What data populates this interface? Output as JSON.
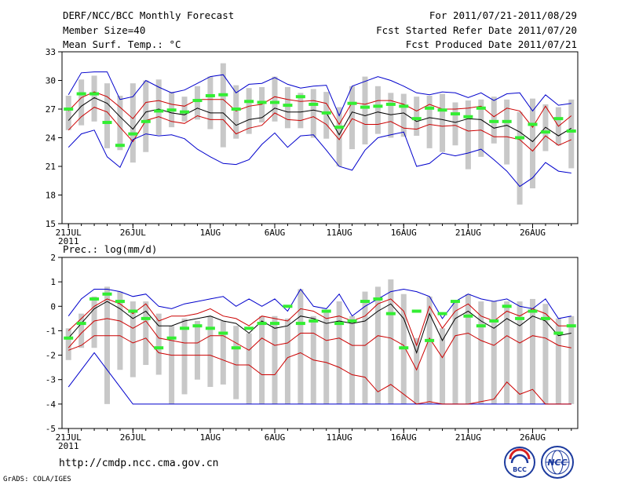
{
  "header": {
    "title": "DERF/NCC/BCC Monthly Forecast",
    "member_size": "Member Size=40",
    "variable": "Mean Surf. Temp.: °C",
    "period": "For 2011/07/21-2011/08/29",
    "fcst_start": "Fcst Started Refer Date 2011/07/20",
    "fcst_produced": "Fcst Produced Date 2011/07/21"
  },
  "footer": {
    "url": "http://cmdp.ncc.cma.gov.cn",
    "grads": "GrADS: COLA/IGES",
    "logo1_text": "BCC",
    "logo2_text": "NCC"
  },
  "colors": {
    "max_line": "#0000cc",
    "quartile_line": "#cc0000",
    "median_line": "#000000",
    "bar": "#c8c8c8",
    "observed": "#33ee33",
    "frame": "#000000"
  },
  "chart_data": [
    {
      "type": "line",
      "name": "temperature",
      "title": "Mean Surf. Temp.: °C",
      "ylim": [
        15,
        33
      ],
      "yticks": [
        15,
        18,
        21,
        24,
        27,
        30,
        33
      ],
      "xlim": [
        0.5,
        40.5
      ],
      "xticks": [
        {
          "day": 1,
          "label": "21JUL",
          "sub": "2011"
        },
        {
          "day": 6,
          "label": "26JUL",
          "sub": ""
        },
        {
          "day": 12,
          "label": "1AUG",
          "sub": ""
        },
        {
          "day": 17,
          "label": "6AUG",
          "sub": ""
        },
        {
          "day": 22,
          "label": "11AUG",
          "sub": ""
        },
        {
          "day": 27,
          "label": "16AUG",
          "sub": ""
        },
        {
          "day": 32,
          "label": "21AUG",
          "sub": ""
        },
        {
          "day": 37,
          "label": "26AUG",
          "sub": ""
        }
      ],
      "days": [
        1,
        2,
        3,
        4,
        5,
        6,
        7,
        8,
        9,
        10,
        11,
        12,
        13,
        14,
        15,
        16,
        17,
        18,
        19,
        20,
        21,
        22,
        23,
        24,
        25,
        26,
        27,
        28,
        29,
        30,
        31,
        32,
        33,
        34,
        35,
        36,
        37,
        38,
        39,
        40
      ],
      "series": [
        {
          "name": "max",
          "role": "max",
          "values": [
            28.5,
            30.8,
            30.9,
            30.9,
            28.0,
            28.3,
            30.0,
            29.3,
            28.7,
            29.0,
            29.7,
            30.4,
            30.6,
            28.7,
            29.6,
            29.7,
            30.3,
            29.6,
            29.2,
            29.4,
            29.5,
            26.3,
            29.4,
            29.9,
            30.4,
            30.0,
            29.4,
            28.7,
            28.5,
            28.8,
            28.7,
            28.2,
            28.7,
            27.9,
            28.6,
            28.7,
            26.8,
            28.5,
            27.4,
            27.6
          ]
        },
        {
          "name": "upper quartile",
          "role": "q3",
          "values": [
            26.8,
            28.2,
            28.8,
            28.3,
            27.2,
            26.0,
            27.7,
            27.9,
            27.5,
            27.3,
            28.0,
            28.0,
            28.0,
            26.8,
            27.3,
            27.5,
            28.3,
            28.0,
            27.8,
            27.9,
            27.6,
            25.4,
            27.7,
            27.5,
            27.9,
            27.9,
            27.5,
            26.8,
            27.5,
            27.0,
            27.0,
            27.1,
            27.3,
            26.2,
            27.1,
            26.8,
            25.1,
            27.3,
            25.2,
            26.3
          ]
        },
        {
          "name": "median",
          "role": "median",
          "values": [
            25.8,
            27.3,
            28.2,
            27.6,
            26.2,
            24.9,
            26.7,
            27.0,
            26.6,
            26.4,
            27.1,
            26.6,
            26.6,
            25.3,
            25.9,
            26.1,
            27.1,
            26.7,
            26.7,
            26.9,
            26.6,
            24.3,
            26.7,
            26.3,
            26.7,
            26.4,
            26.6,
            25.7,
            26.1,
            25.9,
            25.6,
            26.0,
            25.9,
            25.0,
            25.3,
            24.6,
            23.6,
            25.1,
            24.2,
            25.0
          ]
        },
        {
          "name": "lower quartile",
          "role": "q1",
          "values": [
            24.8,
            26.2,
            27.2,
            26.7,
            25.1,
            23.6,
            25.8,
            26.2,
            25.7,
            25.5,
            26.3,
            25.9,
            25.9,
            24.4,
            25.0,
            25.3,
            26.6,
            25.9,
            25.8,
            26.2,
            25.4,
            23.8,
            26.0,
            25.4,
            25.4,
            25.7,
            25.0,
            24.9,
            25.4,
            25.2,
            25.3,
            24.7,
            24.8,
            24.1,
            24.1,
            23.8,
            22.6,
            24.2,
            23.2,
            23.8
          ]
        },
        {
          "name": "min",
          "role": "min",
          "values": [
            23.0,
            24.4,
            24.8,
            22.0,
            20.9,
            23.8,
            24.4,
            24.2,
            24.3,
            23.9,
            22.8,
            22.0,
            21.3,
            21.2,
            21.7,
            23.3,
            24.5,
            23.0,
            24.2,
            24.3,
            22.7,
            21.0,
            20.6,
            22.7,
            24.0,
            24.3,
            24.6,
            21.0,
            21.3,
            22.4,
            22.1,
            22.4,
            22.8,
            21.7,
            20.5,
            18.9,
            19.8,
            21.4,
            20.5,
            20.3
          ]
        }
      ],
      "bars": [
        {
          "low": 24.8,
          "high": 28.4
        },
        {
          "low": 25.3,
          "high": 30.1
        },
        {
          "low": 25.7,
          "high": 30.5
        },
        {
          "low": 22.9,
          "high": 29.7
        },
        {
          "low": 22.7,
          "high": 28.4
        },
        {
          "low": 21.4,
          "high": 29.7
        },
        {
          "low": 22.5,
          "high": 30.0
        },
        {
          "low": 24.3,
          "high": 30.1
        },
        {
          "low": 25.1,
          "high": 28.8
        },
        {
          "low": 25.7,
          "high": 28.3
        },
        {
          "low": 25.9,
          "high": 29.4
        },
        {
          "low": 24.9,
          "high": 30.4
        },
        {
          "low": 23.0,
          "high": 31.8
        },
        {
          "low": 23.9,
          "high": 29.5
        },
        {
          "low": 24.4,
          "high": 29.2
        },
        {
          "low": 25.6,
          "high": 29.3
        },
        {
          "low": 25.7,
          "high": 30.4
        },
        {
          "low": 25.0,
          "high": 29.3
        },
        {
          "low": 25.0,
          "high": 28.7
        },
        {
          "low": 24.0,
          "high": 29.1
        },
        {
          "low": 23.9,
          "high": 28.8
        },
        {
          "low": 21.0,
          "high": 27.2
        },
        {
          "low": 22.8,
          "high": 29.4
        },
        {
          "low": 23.3,
          "high": 30.4
        },
        {
          "low": 24.4,
          "high": 29.4
        },
        {
          "low": 24.0,
          "high": 28.7
        },
        {
          "low": 24.1,
          "high": 28.6
        },
        {
          "low": 24.2,
          "high": 28.3
        },
        {
          "low": 22.9,
          "high": 28.4
        },
        {
          "low": 22.5,
          "high": 28.6
        },
        {
          "low": 23.2,
          "high": 27.7
        },
        {
          "low": 20.7,
          "high": 27.9
        },
        {
          "low": 22.0,
          "high": 28.0
        },
        {
          "low": 23.4,
          "high": 28.3
        },
        {
          "low": 21.2,
          "high": 28.0
        },
        {
          "low": 17.0,
          "high": 26.7
        },
        {
          "low": 18.7,
          "high": 28.1
        },
        {
          "low": 22.6,
          "high": 27.5
        },
        {
          "low": 23.2,
          "high": 27.2
        },
        {
          "low": 20.8,
          "high": 28.0
        }
      ],
      "observed": [
        27.0,
        28.6,
        28.6,
        25.6,
        23.2,
        24.4,
        25.7,
        26.8,
        26.9,
        26.7,
        27.9,
        28.4,
        28.5,
        27.0,
        27.8,
        27.7,
        27.7,
        27.4,
        28.3,
        27.5,
        26.6,
        25.1,
        27.6,
        27.2,
        27.3,
        27.5,
        27.3,
        26.0,
        27.1,
        26.9,
        26.5,
        26.2,
        27.1,
        25.7,
        25.7,
        24.0,
        25.4,
        24.6,
        26.0,
        24.7
      ]
    },
    {
      "type": "line",
      "name": "precipitation",
      "title": "Prec.: log(mm/d)",
      "ylim": [
        -5,
        2
      ],
      "yticks": [
        -5,
        -4,
        -3,
        -2,
        -1,
        0,
        1,
        2
      ],
      "xlim": [
        0.5,
        40.5
      ],
      "xticks": [
        {
          "day": 1,
          "label": "21JUL",
          "sub": "2011"
        },
        {
          "day": 6,
          "label": "26JUL",
          "sub": ""
        },
        {
          "day": 12,
          "label": "1AUG",
          "sub": ""
        },
        {
          "day": 17,
          "label": "6AUG",
          "sub": ""
        },
        {
          "day": 22,
          "label": "11AUG",
          "sub": ""
        },
        {
          "day": 27,
          "label": "16AUG",
          "sub": ""
        },
        {
          "day": 32,
          "label": "21AUG",
          "sub": ""
        },
        {
          "day": 37,
          "label": "26AUG",
          "sub": ""
        }
      ],
      "days": [
        1,
        2,
        3,
        4,
        5,
        6,
        7,
        8,
        9,
        10,
        11,
        12,
        13,
        14,
        15,
        16,
        17,
        18,
        19,
        20,
        21,
        22,
        23,
        24,
        25,
        26,
        27,
        28,
        29,
        30,
        31,
        32,
        33,
        34,
        35,
        36,
        37,
        38,
        39,
        40
      ],
      "series": [
        {
          "name": "max",
          "role": "max",
          "values": [
            -0.4,
            0.3,
            0.7,
            0.7,
            0.6,
            0.4,
            0.5,
            0.0,
            -0.1,
            0.1,
            0.2,
            0.3,
            0.4,
            0.0,
            0.3,
            0.0,
            0.3,
            -0.2,
            0.7,
            0.0,
            -0.1,
            0.5,
            -0.4,
            0.0,
            0.3,
            0.6,
            0.7,
            0.6,
            0.4,
            -0.5,
            0.2,
            0.5,
            0.3,
            0.2,
            0.3,
            0.0,
            -0.1,
            0.3,
            -0.5,
            -0.4
          ]
        },
        {
          "name": "upper quartile",
          "role": "q3",
          "values": [
            -1.0,
            -0.5,
            0.0,
            0.3,
            0.1,
            -0.3,
            0.1,
            -0.6,
            -0.4,
            -0.4,
            -0.3,
            -0.1,
            -0.4,
            -0.5,
            -0.8,
            -0.4,
            -0.5,
            -0.6,
            -0.1,
            -0.2,
            -0.5,
            -0.4,
            -0.6,
            -0.4,
            0.1,
            0.3,
            -0.2,
            -1.6,
            0.0,
            -0.9,
            -0.2,
            0.1,
            -0.4,
            -0.6,
            -0.2,
            -0.4,
            -0.1,
            -0.3,
            -0.8,
            -0.8
          ]
        },
        {
          "name": "median",
          "role": "median",
          "values": [
            -1.3,
            -0.7,
            -0.1,
            0.2,
            -0.1,
            -0.5,
            -0.2,
            -0.8,
            -0.8,
            -0.6,
            -0.5,
            -0.4,
            -0.6,
            -0.7,
            -1.1,
            -0.6,
            -0.9,
            -0.8,
            -0.4,
            -0.5,
            -0.7,
            -0.6,
            -0.7,
            -0.6,
            -0.2,
            0.1,
            -0.5,
            -1.9,
            -0.3,
            -1.4,
            -0.5,
            -0.2,
            -0.6,
            -0.9,
            -0.5,
            -0.8,
            -0.4,
            -0.6,
            -1.2,
            -1.1
          ]
        },
        {
          "name": "lower quartile",
          "role": "q1",
          "values": [
            -1.7,
            -1.1,
            -0.6,
            -0.5,
            -0.6,
            -0.9,
            -0.6,
            -1.3,
            -1.4,
            -1.5,
            -1.5,
            -1.2,
            -1.2,
            -1.5,
            -1.8,
            -1.3,
            -1.6,
            -1.5,
            -1.1,
            -1.1,
            -1.4,
            -1.3,
            -1.6,
            -1.6,
            -1.2,
            -1.3,
            -1.6,
            -2.6,
            -1.3,
            -2.1,
            -1.2,
            -1.1,
            -1.4,
            -1.6,
            -1.2,
            -1.5,
            -1.2,
            -1.3,
            -1.6,
            -1.7
          ]
        },
        {
          "name": "min",
          "role": "min",
          "values": [
            -3.3,
            -2.6,
            -1.9,
            -2.6,
            -3.3,
            -4.0,
            -4.0,
            -4.0,
            -4.0,
            -4.0,
            -4.0,
            -4.0,
            -4.0,
            -4.0,
            -4.0,
            -4.0,
            -4.0,
            -4.0,
            -4.0,
            -4.0,
            -4.0,
            -4.0,
            -4.0,
            -4.0,
            -4.0,
            -4.0,
            -4.0,
            -4.0,
            -4.0,
            -4.0,
            -4.0,
            -4.0,
            -4.0,
            -4.0,
            -4.0,
            -4.0,
            -4.0,
            -4.0,
            -4.0,
            -4.0
          ]
        },
        {
          "name": "lower extreme",
          "role": "low10",
          "values": [
            -1.8,
            -1.6,
            -1.2,
            -1.2,
            -1.2,
            -1.5,
            -1.3,
            -1.9,
            -2.0,
            -2.0,
            -2.0,
            -2.0,
            -2.2,
            -2.4,
            -2.4,
            -2.8,
            -2.8,
            -2.1,
            -1.9,
            -2.2,
            -2.3,
            -2.5,
            -2.8,
            -2.9,
            -3.5,
            -3.2,
            -3.6,
            -4.0,
            -3.9,
            -4.0,
            -4.0,
            -4.0,
            -3.9,
            -3.8,
            -3.1,
            -3.6,
            -3.4,
            -4.0,
            -4.0,
            -4.0
          ]
        }
      ],
      "bars": [
        {
          "low": -2.2,
          "high": -0.9
        },
        {
          "low": -1.7,
          "high": -0.3
        },
        {
          "low": -1.7,
          "high": 0.4
        },
        {
          "low": -4.0,
          "high": 0.8
        },
        {
          "low": -2.6,
          "high": 0.6
        },
        {
          "low": -2.9,
          "high": 0.2
        },
        {
          "low": -2.4,
          "high": 0.2
        },
        {
          "low": -2.8,
          "high": -0.3
        },
        {
          "low": -4.0,
          "high": -0.8
        },
        {
          "low": -3.6,
          "high": -0.5
        },
        {
          "low": -3.0,
          "high": -0.6
        },
        {
          "low": -3.3,
          "high": -0.4
        },
        {
          "low": -3.2,
          "high": -0.6
        },
        {
          "low": -3.8,
          "high": -0.8
        },
        {
          "low": -4.0,
          "high": -1.1
        },
        {
          "low": -4.0,
          "high": -0.4
        },
        {
          "low": -4.0,
          "high": -0.4
        },
        {
          "low": -4.0,
          "high": -0.5
        },
        {
          "low": -4.0,
          "high": 0.7
        },
        {
          "low": -4.0,
          "high": -0.4
        },
        {
          "low": -4.0,
          "high": -0.2
        },
        {
          "low": -4.0,
          "high": 0.2
        },
        {
          "low": -4.0,
          "high": -0.4
        },
        {
          "low": -4.0,
          "high": 0.6
        },
        {
          "low": -4.0,
          "high": 0.8
        },
        {
          "low": -4.0,
          "high": 1.1
        },
        {
          "low": -4.0,
          "high": 0.5
        },
        {
          "low": -4.0,
          "high": -1.3
        },
        {
          "low": -4.0,
          "high": 0.4
        },
        {
          "low": -4.0,
          "high": -0.9
        },
        {
          "low": -4.0,
          "high": 0.2
        },
        {
          "low": -4.0,
          "high": 0.5
        },
        {
          "low": -4.0,
          "high": 0.2
        },
        {
          "low": -4.0,
          "high": 0.2
        },
        {
          "low": -4.0,
          "high": 0.2
        },
        {
          "low": -4.0,
          "high": 0.2
        },
        {
          "low": -4.0,
          "high": 0.3
        },
        {
          "low": -4.0,
          "high": 0.1
        },
        {
          "low": -4.0,
          "high": -0.5
        },
        {
          "low": -4.0,
          "high": -0.4
        }
      ],
      "observed": [
        -1.3,
        -0.7,
        0.3,
        0.5,
        0.2,
        -0.2,
        -0.5,
        -1.7,
        -1.3,
        -0.9,
        -0.8,
        -0.9,
        -1.1,
        -1.7,
        -0.9,
        -0.7,
        -0.7,
        0.0,
        -0.7,
        -0.6,
        -0.2,
        -0.7,
        -0.6,
        0.2,
        0.3,
        -0.3,
        -1.7,
        -0.2,
        -1.4,
        -0.3,
        0.2,
        -0.4,
        -0.8,
        -0.6,
        0.0,
        -0.5,
        -0.2,
        -0.5,
        -1.1,
        -0.8
      ]
    }
  ]
}
